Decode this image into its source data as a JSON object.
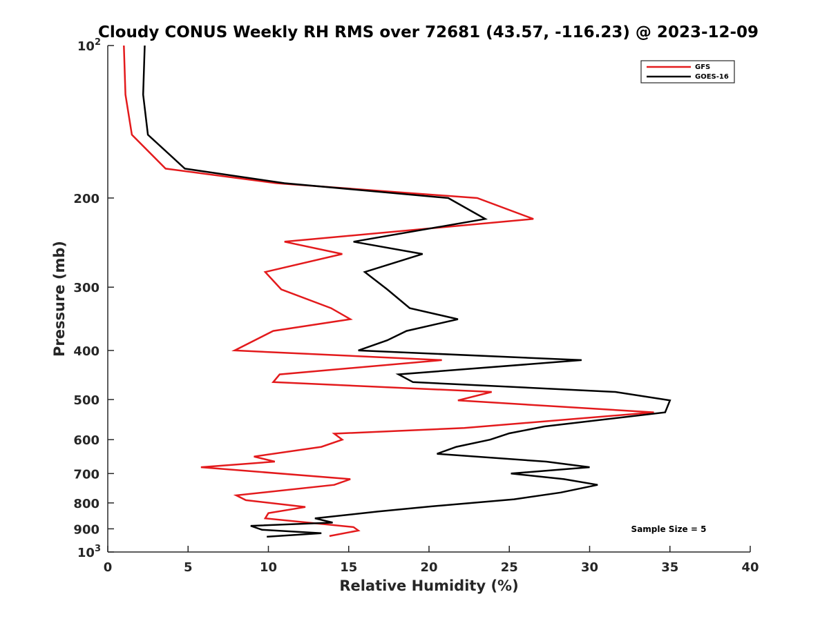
{
  "chart_data": {
    "type": "line",
    "title": "Cloudy CONUS Weekly RH RMS over 72681 (43.57, -116.23) @ 2023-12-09",
    "xlabel": "Relative Humidity (%)",
    "ylabel": "Pressure (mb)",
    "xlim": [
      0,
      40
    ],
    "ylim": [
      100,
      1000
    ],
    "y_scale": "log",
    "y_reversed": true,
    "grid": false,
    "x_ticks": [
      0,
      5,
      10,
      15,
      20,
      25,
      30,
      35,
      40
    ],
    "x_tick_labels": [
      "0",
      "5",
      "10",
      "15",
      "20",
      "25",
      "30",
      "35",
      "40"
    ],
    "y_ticks": [
      200,
      300,
      400,
      500,
      600,
      700,
      800,
      900
    ],
    "y_tick_labels": [
      "200",
      "300",
      "400",
      "500",
      "600",
      "700",
      "800",
      "900"
    ],
    "y_end_labels": [
      {
        "value": 100,
        "base": "10",
        "exp": "2"
      },
      {
        "value": 1000,
        "base": "10",
        "exp": "3"
      }
    ],
    "legend_position": "top-right",
    "annotation": "Sample Size = 5",
    "series": [
      {
        "name": "GFS",
        "color": "#e31a1c",
        "points": [
          [
            1.0,
            100
          ],
          [
            1.1,
            125
          ],
          [
            1.5,
            150
          ],
          [
            3.6,
            175
          ],
          [
            10.5,
            187
          ],
          [
            23.0,
            200
          ],
          [
            26.5,
            220
          ],
          [
            11.0,
            244
          ],
          [
            14.6,
            258
          ],
          [
            9.8,
            280
          ],
          [
            10.8,
            303
          ],
          [
            13.9,
            330
          ],
          [
            15.1,
            347
          ],
          [
            10.3,
            366
          ],
          [
            7.9,
            400
          ],
          [
            20.8,
            418
          ],
          [
            10.7,
            446
          ],
          [
            10.3,
            462
          ],
          [
            23.9,
            483
          ],
          [
            21.8,
            502
          ],
          [
            34.0,
            530
          ],
          [
            22.2,
            569
          ],
          [
            14.1,
            584
          ],
          [
            14.6,
            600
          ],
          [
            13.3,
            620
          ],
          [
            9.1,
            648
          ],
          [
            10.4,
            663
          ],
          [
            5.8,
            680
          ],
          [
            15.1,
            718
          ],
          [
            14.1,
            737
          ],
          [
            8.0,
            773
          ],
          [
            8.6,
            790
          ],
          [
            12.3,
            815
          ],
          [
            10.0,
            838
          ],
          [
            9.8,
            858
          ],
          [
            15.3,
            893
          ],
          [
            15.6,
            907
          ],
          [
            13.8,
            930
          ]
        ]
      },
      {
        "name": "GOES-16",
        "color": "#000000",
        "points": [
          [
            2.3,
            100
          ],
          [
            2.2,
            125
          ],
          [
            2.5,
            150
          ],
          [
            4.8,
            175
          ],
          [
            11.0,
            187
          ],
          [
            21.2,
            200
          ],
          [
            23.5,
            220
          ],
          [
            15.3,
            244
          ],
          [
            19.6,
            258
          ],
          [
            16.0,
            280
          ],
          [
            17.4,
            303
          ],
          [
            18.8,
            330
          ],
          [
            21.8,
            347
          ],
          [
            18.6,
            366
          ],
          [
            17.4,
            382
          ],
          [
            15.6,
            400
          ],
          [
            29.5,
            418
          ],
          [
            18.1,
            446
          ],
          [
            19.0,
            462
          ],
          [
            31.6,
            483
          ],
          [
            35.0,
            502
          ],
          [
            34.7,
            530
          ],
          [
            27.2,
            565
          ],
          [
            25.0,
            583
          ],
          [
            23.8,
            600
          ],
          [
            21.7,
            620
          ],
          [
            20.5,
            640
          ],
          [
            27.3,
            663
          ],
          [
            30.0,
            680
          ],
          [
            25.1,
            700
          ],
          [
            28.4,
            718
          ],
          [
            30.5,
            737
          ],
          [
            28.2,
            763
          ],
          [
            25.3,
            787
          ],
          [
            20.1,
            813
          ],
          [
            16.8,
            832
          ],
          [
            12.9,
            858
          ],
          [
            14.0,
            875
          ],
          [
            8.9,
            888
          ],
          [
            9.6,
            904
          ],
          [
            13.3,
            918
          ],
          [
            9.9,
            933
          ]
        ]
      }
    ]
  }
}
